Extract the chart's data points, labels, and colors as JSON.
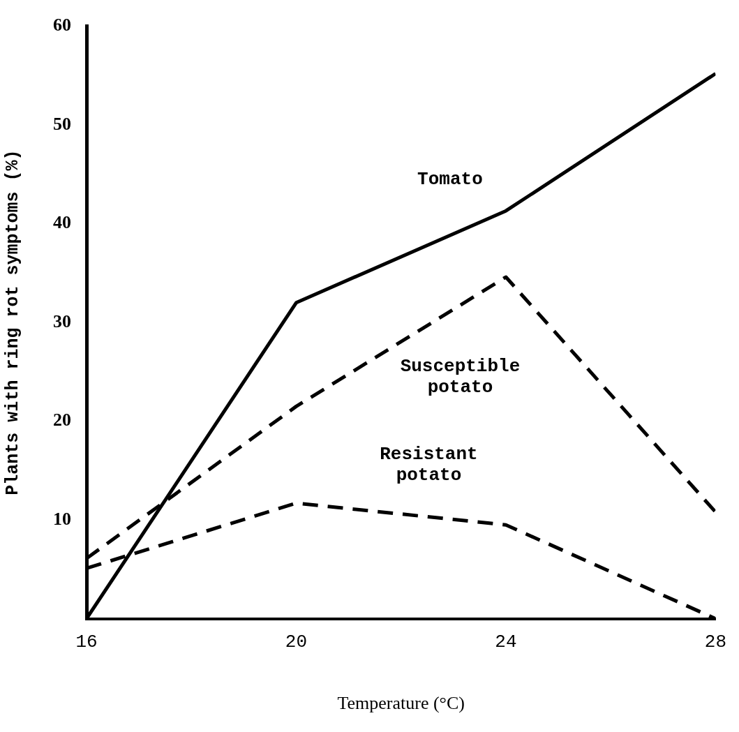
{
  "chart_data": {
    "type": "line",
    "xlabel": "Temperature (°C)",
    "ylabel": "Plants with ring rot symptoms (%)",
    "x": [
      16,
      20,
      24,
      28
    ],
    "xlim": [
      16,
      28
    ],
    "xticks": [
      16,
      20,
      24,
      28
    ],
    "ylim": [
      0,
      60
    ],
    "yticks": [
      10,
      20,
      30,
      40,
      50,
      60
    ],
    "grid": false,
    "legend": false,
    "marker": "none",
    "series": [
      {
        "name": "Tomato",
        "color": "#000000",
        "line_style": "solid",
        "values": [
          0,
          32,
          41.3,
          55.2
        ]
      },
      {
        "name": "Susceptible potato",
        "color": "#000000",
        "line_style": "dashed",
        "values": [
          6.1,
          21.5,
          34.6,
          10.8
        ]
      },
      {
        "name": "Resistant potato",
        "color": "#000000",
        "line_style": "dashed",
        "values": [
          5.1,
          11.7,
          9.5,
          0
        ]
      }
    ]
  }
}
